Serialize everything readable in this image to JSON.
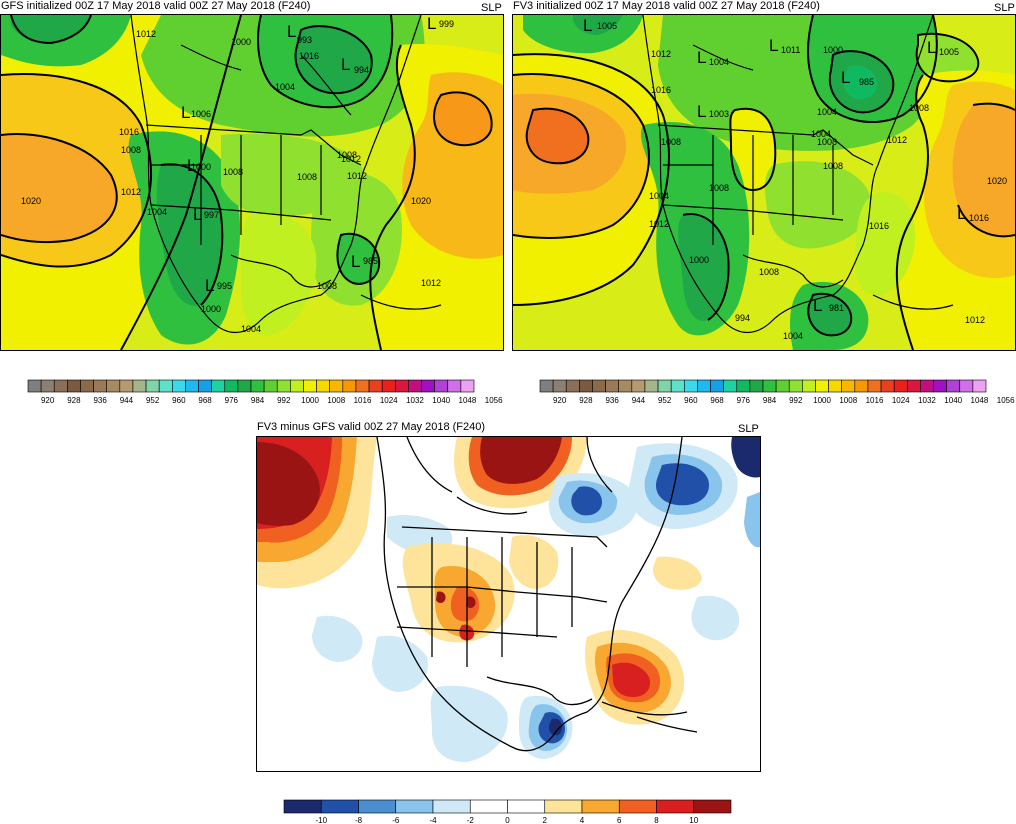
{
  "panels": {
    "gfs": {
      "title": "GFS initialized 00Z 17 May 2018 valid 00Z 27 May 2018 (F240)",
      "field": "SLP",
      "labels": [
        "1012",
        "1000",
        "993",
        "994",
        "1004",
        "1006",
        "1016",
        "1008",
        "1000",
        "1008",
        "1012",
        "1008",
        "997",
        "1012",
        "1004",
        "995",
        "1000",
        "1004",
        "1008",
        "985",
        "1012",
        "1020",
        "1020",
        "999",
        "1008",
        "1016",
        "1012"
      ]
    },
    "fv3": {
      "title": "FV3 initialized 00Z 17 May 2018 valid 00Z 27 May 2018 (F240)",
      "field": "SLP",
      "labels": [
        "1005",
        "1012",
        "1004",
        "1011",
        "1000",
        "1005",
        "985",
        "1016",
        "1003",
        "1008",
        "1004",
        "1008",
        "1008",
        "1004",
        "1012",
        "1008",
        "1000",
        "1008",
        "994",
        "1004",
        "981",
        "1012",
        "1016",
        "1020",
        "1012",
        "1008",
        "1004",
        "1016"
      ]
    },
    "diff": {
      "title": "FV3 minus GFS valid 00Z 27 May 2018 (F240)",
      "field": "SLP"
    }
  },
  "colorbars": {
    "slp": {
      "ticks": [
        "920",
        "928",
        "936",
        "944",
        "952",
        "960",
        "968",
        "976",
        "984",
        "992",
        "1000",
        "1008",
        "1016",
        "1024",
        "1032",
        "1040",
        "1048",
        "1056"
      ],
      "colors": [
        "#7f7f7f",
        "#8c7f74",
        "#8a6f5a",
        "#7b5a3f",
        "#8a6a48",
        "#9a7a56",
        "#a68b62",
        "#b49a6e",
        "#a6b48a",
        "#7fd4a8",
        "#5fe0c8",
        "#3fd8e8",
        "#1fb8f0",
        "#16a0e8",
        "#1fd0a0",
        "#10b860",
        "#20a848",
        "#30c040",
        "#60d030",
        "#90e030",
        "#c0f020",
        "#f0f000",
        "#f8d800",
        "#f8b800",
        "#f89800",
        "#f07020",
        "#e84020",
        "#e82020",
        "#d81840",
        "#c01080",
        "#a010c0",
        "#b040d8",
        "#d070e8",
        "#f0a0f0"
      ]
    },
    "diff": {
      "ticks": [
        "-10",
        "-8",
        "-6",
        "-4",
        "-2",
        "0",
        "2",
        "4",
        "6",
        "8",
        "10"
      ],
      "colors": [
        "#1a2a6c",
        "#2050a8",
        "#4a8ed0",
        "#88c4ec",
        "#cfe9f6",
        "#ffffff",
        "#ffffff",
        "#fde49a",
        "#f8a830",
        "#f06020",
        "#d82020",
        "#9a1414"
      ]
    }
  }
}
